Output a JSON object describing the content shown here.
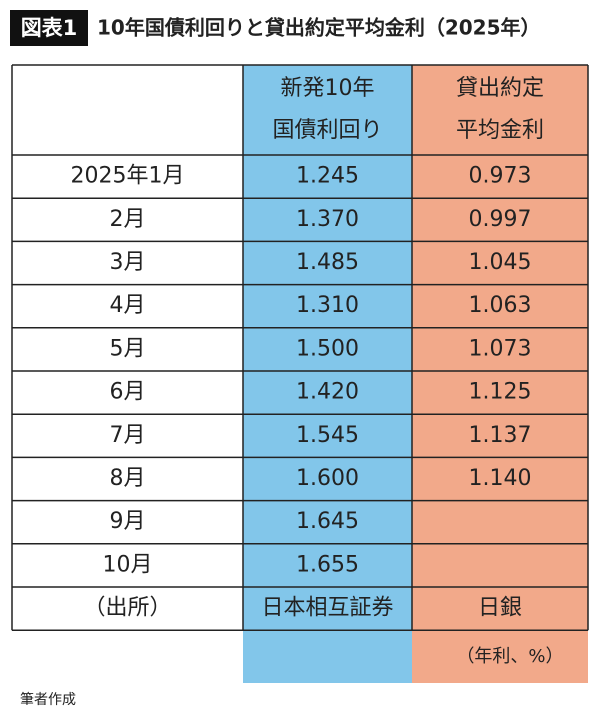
{
  "title": {
    "label": "図表1",
    "text": "10年国債利回りと貸出約定平均金利（2025年）"
  },
  "table": {
    "header": [
      [
        "新発10年",
        "国債利回り"
      ],
      [
        "貸出約定",
        "平均金利"
      ]
    ],
    "rows": [
      [
        "2025年1月",
        "1.245",
        "0.973"
      ],
      [
        "2月",
        "1.370",
        "0.997"
      ],
      [
        "3月",
        "1.485",
        "1.045"
      ],
      [
        "4月",
        "1.310",
        "1.063"
      ],
      [
        "5月",
        "1.500",
        "1.073"
      ],
      [
        "6月",
        "1.420",
        "1.125"
      ],
      [
        "7月",
        "1.545",
        "1.137"
      ],
      [
        "8月",
        "1.600",
        "1.140"
      ],
      [
        "9月",
        "1.645",
        null
      ],
      [
        "10月",
        "1.655",
        null
      ],
      [
        "（出所）",
        "日本相互証券",
        "日銀"
      ]
    ],
    "unit": "（年利、%）"
  },
  "footnote": "筆者作成"
}
